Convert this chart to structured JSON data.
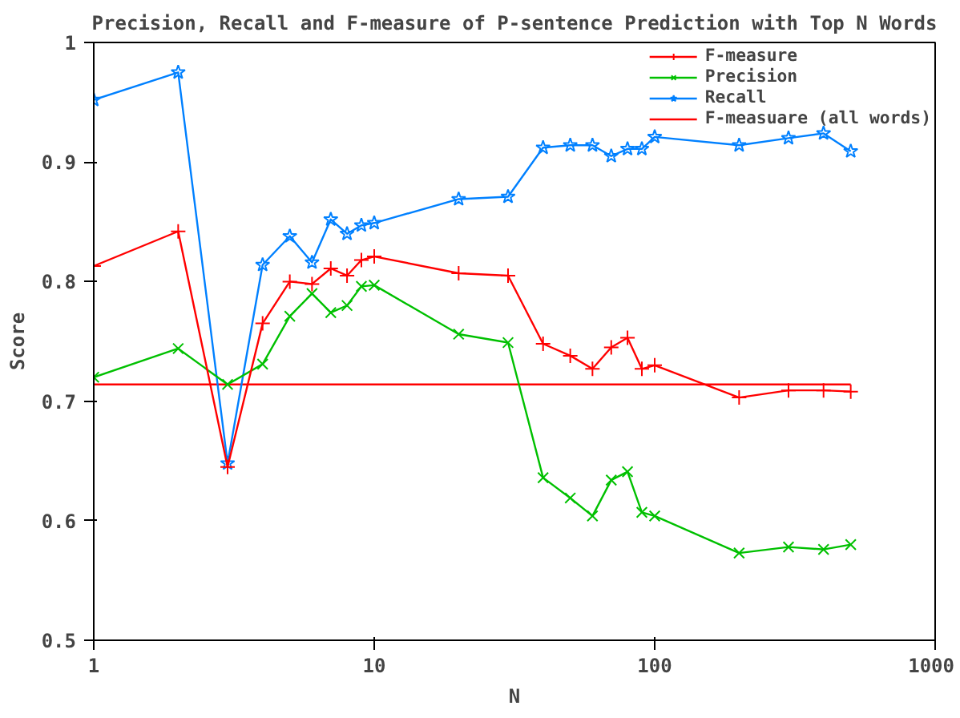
{
  "chart_data": {
    "type": "line",
    "title": "Precision, Recall and F-measure of P-sentence Prediction with Top N Words",
    "xlabel": "N",
    "ylabel": "Score",
    "x": [
      1,
      2,
      3,
      4,
      5,
      6,
      7,
      8,
      9,
      10,
      20,
      30,
      40,
      50,
      60,
      70,
      80,
      90,
      100,
      200,
      300,
      400,
      500
    ],
    "series": [
      {
        "name": "F-measure",
        "color": "#ff0000",
        "marker": "cross",
        "values": [
          0.813,
          0.842,
          0.645,
          0.765,
          0.8,
          0.798,
          0.811,
          0.805,
          0.818,
          0.821,
          0.807,
          0.805,
          0.748,
          0.738,
          0.727,
          0.745,
          0.753,
          0.727,
          0.73,
          0.703,
          0.709,
          0.709,
          0.708
        ]
      },
      {
        "name": "Precision",
        "color": "#00c000",
        "marker": "x",
        "values": [
          0.72,
          0.744,
          0.714,
          0.731,
          0.771,
          0.79,
          0.774,
          0.78,
          0.796,
          0.797,
          0.756,
          0.749,
          0.636,
          0.619,
          0.604,
          0.634,
          0.641,
          0.607,
          0.604,
          0.573,
          0.578,
          0.576,
          0.58
        ]
      },
      {
        "name": "Recall",
        "color": "#0080ff",
        "marker": "star",
        "values": [
          0.952,
          0.975,
          0.648,
          0.814,
          0.838,
          0.816,
          0.852,
          0.84,
          0.847,
          0.849,
          0.869,
          0.871,
          0.912,
          0.914,
          0.914,
          0.905,
          0.911,
          0.911,
          0.921,
          0.914,
          0.92,
          0.924,
          0.909
        ]
      },
      {
        "name": "F-measuare (all words)",
        "color": "#ff0000",
        "marker": "none",
        "x": [
          1,
          500
        ],
        "values": [
          0.714,
          0.714
        ]
      }
    ],
    "log": "x",
    "xlim": [
      1,
      1000
    ],
    "xticks": [
      1,
      10,
      100,
      1000
    ],
    "ylim": [
      0.5,
      1
    ],
    "yticks": [
      {
        "value": 0.5,
        "label": "0.5"
      },
      {
        "value": 0.6,
        "label": "0.6"
      },
      {
        "value": 0.7,
        "label": "0.7"
      },
      {
        "value": 0.8,
        "label": "0.8"
      },
      {
        "value": 0.9,
        "label": "0.9"
      },
      {
        "value": 1,
        "label": "1"
      }
    ],
    "grid": false,
    "legend": "top right"
  }
}
